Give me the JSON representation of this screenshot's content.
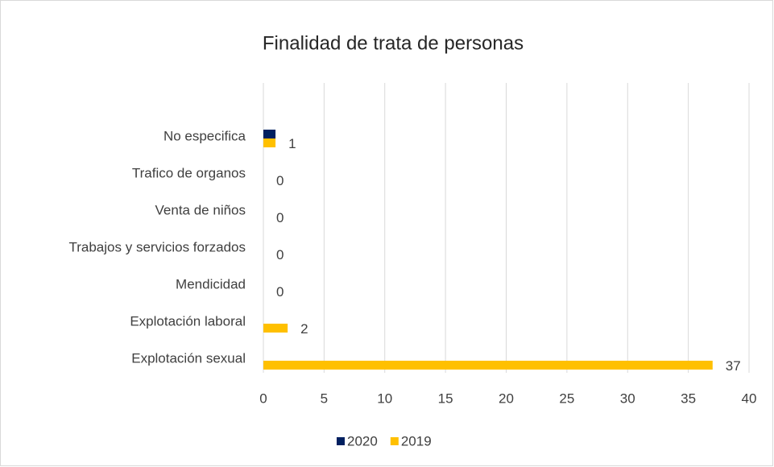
{
  "chart_data": {
    "type": "hbar",
    "title": "Finalidad de trata de personas",
    "categories": [
      "No especifica",
      "Trafico de organos",
      "Venta de niños",
      "Trabajos y servicios forzados",
      "Mendicidad",
      "Explotación laboral",
      "Explotación sexual"
    ],
    "series": [
      {
        "name": "2020",
        "color": "#002060",
        "values": [
          1,
          0,
          0,
          0,
          0,
          0,
          0
        ],
        "show_labels": false
      },
      {
        "name": "2019",
        "color": "#ffc000",
        "values": [
          1,
          0,
          0,
          0,
          0,
          2,
          37
        ],
        "show_labels": true
      }
    ],
    "xlim": [
      0,
      40
    ],
    "xticks": [
      0,
      5,
      10,
      15,
      20,
      25,
      30,
      35,
      40
    ],
    "grid": true,
    "legend": "bottom"
  }
}
